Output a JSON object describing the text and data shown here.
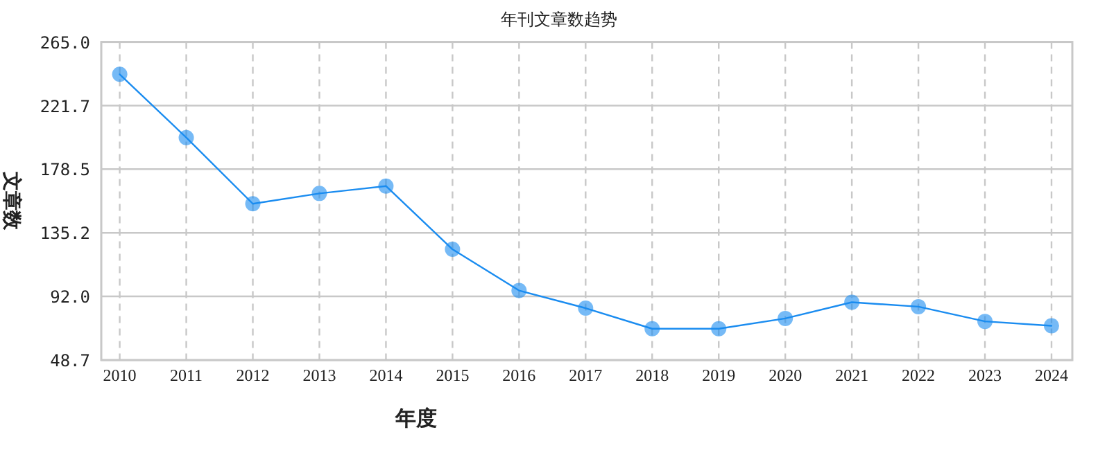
{
  "chart_data": {
    "type": "line",
    "title": "年刊文章数趋势",
    "xlabel": "年度",
    "ylabel": "文章数",
    "categories": [
      "2010",
      "2011",
      "2012",
      "2013",
      "2014",
      "2015",
      "2016",
      "2017",
      "2018",
      "2019",
      "2020",
      "2021",
      "2022",
      "2023",
      "2024"
    ],
    "series": [
      {
        "color": "#1a8cf0",
        "values": [
          243,
          200,
          155,
          162,
          167,
          124,
          96,
          84,
          70,
          70,
          77,
          88,
          85,
          75,
          72
        ]
      }
    ],
    "ylim": [
      48.7,
      265.0
    ],
    "yticks": [
      {
        "value": 48.7,
        "label": "48.7"
      },
      {
        "value": 92.0,
        "label": "92.0"
      },
      {
        "value": 135.2,
        "label": "135.2"
      },
      {
        "value": 178.5,
        "label": "178.5"
      },
      {
        "value": 221.7,
        "label": "221.7"
      },
      {
        "value": 265.0,
        "label": "265.0"
      }
    ],
    "grid": true,
    "marker": "circle",
    "line_style": "solid"
  }
}
